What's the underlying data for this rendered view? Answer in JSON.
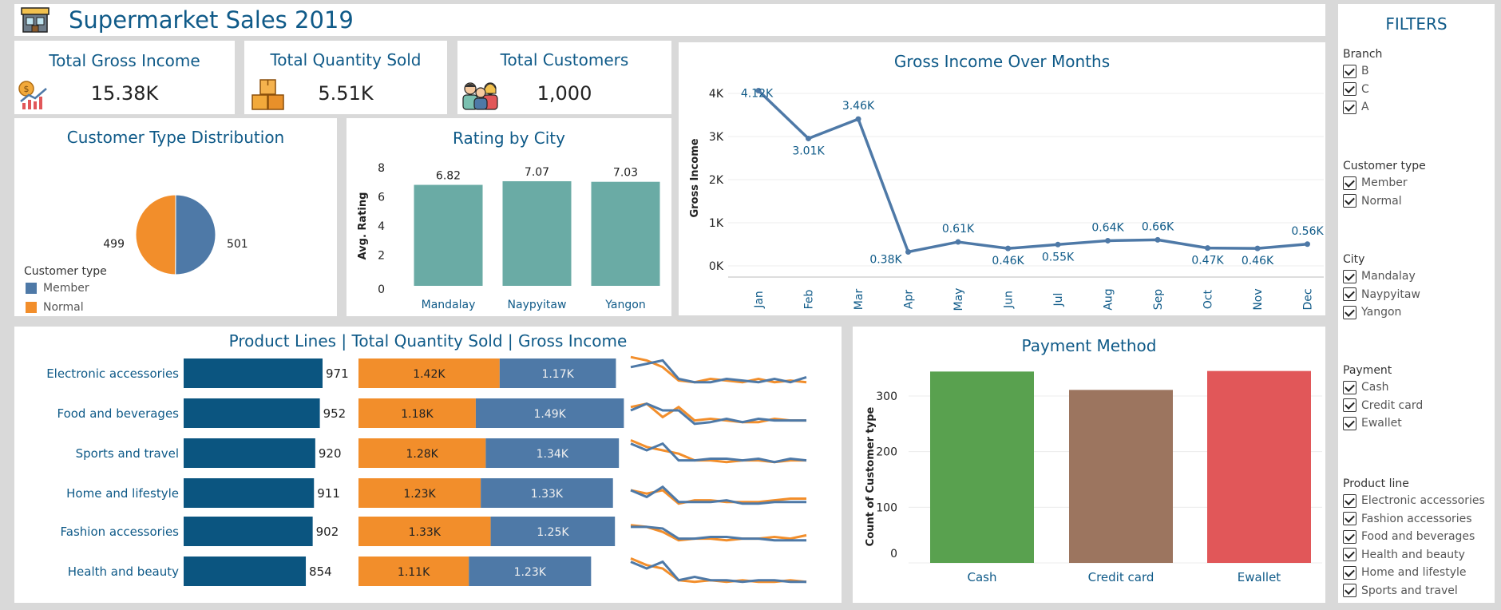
{
  "header": {
    "title": "Supermarket Sales 2019",
    "logo_icon": "supermarket-icon"
  },
  "kpis": [
    {
      "title": "Total Gross Income",
      "value": "15.38K",
      "icon": "income-chart-icon"
    },
    {
      "title": "Total Quantity Sold",
      "value": "5.51K",
      "icon": "boxes-icon"
    },
    {
      "title": "Total Customers",
      "value": "1,000",
      "icon": "people-icon"
    }
  ],
  "customer_type": {
    "title": "Customer Type Distribution",
    "legend_title": "Customer type",
    "slices": [
      {
        "name": "Member",
        "value": 501,
        "color": "#4e79a7"
      },
      {
        "name": "Normal",
        "value": 499,
        "color": "#f28e2b"
      }
    ]
  },
  "rating_by_city": {
    "title": "Rating by City",
    "ylabel": "Avg. Rating"
  },
  "gross_income_months": {
    "title": "Gross Income Over Months",
    "ylabel": "Gross Income"
  },
  "product_lines": {
    "title": "Product Lines | Total Quantity Sold | Gross Income"
  },
  "payment": {
    "title": "Payment Method",
    "ylabel": "Count of Customer type"
  },
  "filters": {
    "title": "FILTERS",
    "groups": [
      {
        "label": "Branch",
        "items": [
          "B",
          "C",
          "A"
        ]
      },
      {
        "label": "Customer type",
        "items": [
          "Member",
          "Normal"
        ]
      },
      {
        "label": "City",
        "items": [
          "Mandalay",
          "Naypyitaw",
          "Yangon"
        ]
      },
      {
        "label": "Payment",
        "items": [
          "Cash",
          "Credit card",
          "Ewallet"
        ]
      },
      {
        "label": "Product line",
        "items": [
          "Electronic accessories",
          "Fashion accessories",
          "Food and beverages",
          "Health and beauty",
          "Home and lifestyle",
          "Sports and travel"
        ]
      }
    ]
  },
  "chart_data": [
    {
      "type": "pie",
      "title": "Customer Type Distribution",
      "categories": [
        "Member",
        "Normal"
      ],
      "values": [
        501,
        499
      ],
      "data_labels": [
        "501",
        "499"
      ],
      "legend": "bottom-left"
    },
    {
      "type": "bar",
      "title": "Rating by City",
      "categories": [
        "Mandalay",
        "Naypyitaw",
        "Yangon"
      ],
      "values": [
        6.82,
        7.07,
        7.03
      ],
      "data_labels": [
        "6.82",
        "7.07",
        "7.03"
      ],
      "ylabel": "Avg. Rating",
      "ylim": [
        0,
        8
      ],
      "yticks": [
        0,
        2,
        4,
        6,
        8
      ],
      "color": "#6aaba5"
    },
    {
      "type": "line",
      "title": "Gross Income Over Months",
      "categories": [
        "Jan",
        "Feb",
        "Mar",
        "Apr",
        "May",
        "Jun",
        "Jul",
        "Aug",
        "Sep",
        "Oct",
        "Nov",
        "Dec"
      ],
      "values": [
        4120,
        3010,
        3460,
        380,
        610,
        460,
        550,
        640,
        660,
        470,
        460,
        560
      ],
      "data_labels": [
        "4.12K",
        "3.01K",
        "3.46K",
        "0.38K",
        "0.61K",
        "0.46K",
        "0.55K",
        "0.64K",
        "0.66K",
        "0.47K",
        "0.46K",
        "0.56K"
      ],
      "ylabel": "Gross Income",
      "ylim": [
        0,
        4200
      ],
      "yticks": [
        0,
        1000,
        2000,
        3000,
        4000
      ],
      "ytick_labels": [
        "0K",
        "1K",
        "2K",
        "3K",
        "4K"
      ],
      "color": "#4e79a7",
      "grid": true
    },
    {
      "type": "bar",
      "orientation": "horizontal",
      "title": "Product Lines | Total Quantity Sold | Gross Income",
      "categories": [
        "Electronic accessories",
        "Food and beverages",
        "Sports and travel",
        "Home and lifestyle",
        "Fashion accessories",
        "Health and beauty"
      ],
      "quantity": [
        971,
        952,
        920,
        911,
        902,
        854
      ],
      "gross_income_stacked": {
        "series": [
          {
            "values": [
              1420,
              1180,
              1280,
              1230,
              1330,
              1110
            ],
            "labels": [
              "1.42K",
              "1.18K",
              "1.28K",
              "1.23K",
              "1.33K",
              "1.11K"
            ],
            "color": "#f28e2b"
          },
          {
            "values": [
              1170,
              1490,
              1340,
              1330,
              1250,
              1230
            ],
            "labels": [
              "1.17K",
              "1.49K",
              "1.34K",
              "1.33K",
              "1.25K",
              "1.23K"
            ],
            "color": "#4e79a7"
          }
        ]
      },
      "quantity_color": "#0b5580",
      "sparklines": [
        {
          "orange": [
            9,
            8,
            6,
            2,
            1.5,
            2.5,
            2,
            1.5,
            2.5,
            1.5,
            2,
            1.5
          ],
          "blue": [
            6,
            7,
            8,
            2.5,
            1.5,
            1.5,
            2.5,
            2,
            1.5,
            2.5,
            1.5,
            3
          ]
        },
        {
          "orange": [
            6,
            7,
            3,
            6,
            2,
            2.5,
            2,
            1.5,
            1.5,
            2.5,
            2,
            2
          ],
          "blue": [
            5,
            7,
            5,
            5,
            1,
            1.5,
            2.5,
            1.5,
            2.5,
            2,
            2,
            2
          ]
        },
        {
          "orange": [
            8,
            6,
            5,
            4,
            2,
            2,
            1.5,
            2,
            2,
            1.5,
            2,
            2
          ],
          "blue": [
            7,
            5,
            7,
            2,
            2,
            2.5,
            2.5,
            2,
            2.5,
            1.5,
            2.5,
            2
          ]
        },
        {
          "orange": [
            5,
            4,
            5,
            1,
            2,
            2,
            1.5,
            1.5,
            1.5,
            2,
            2.5,
            2.5
          ],
          "blue": [
            5,
            3,
            6,
            1.5,
            1.5,
            1.5,
            2,
            1,
            1,
            1.5,
            1.5,
            1.5
          ]
        },
        {
          "orange": [
            6,
            5.5,
            4,
            1.5,
            2,
            2,
            1.5,
            2,
            2,
            2.5,
            2,
            3
          ],
          "blue": [
            5.5,
            5.5,
            5,
            2,
            2,
            2.5,
            2.5,
            2,
            2,
            1.5,
            1.5,
            1.5
          ]
        },
        {
          "orange": [
            8,
            6,
            5,
            1.5,
            1,
            1.5,
            1,
            1.5,
            1,
            1,
            1.5,
            1
          ],
          "blue": [
            7,
            5,
            7,
            1.5,
            2.5,
            1.5,
            1.5,
            1,
            1.5,
            1.5,
            1,
            1
          ]
        }
      ]
    },
    {
      "type": "bar",
      "title": "Payment Method",
      "categories": [
        "Cash",
        "Credit card",
        "Ewallet"
      ],
      "values": [
        344,
        311,
        345
      ],
      "colors": [
        "#59a14f",
        "#9c755f",
        "#e15759"
      ],
      "ylabel": "Count of Customer type",
      "ylim": [
        0,
        360
      ],
      "yticks": [
        0,
        100,
        200,
        300
      ]
    }
  ]
}
